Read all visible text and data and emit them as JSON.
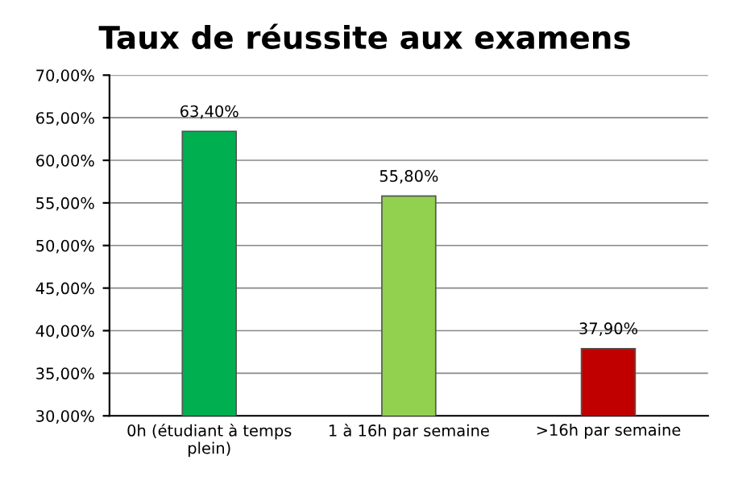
{
  "chart_data": {
    "type": "bar",
    "title": "Taux de réussite aux examens",
    "categories": [
      "0h (étudiant à temps\nplein)",
      "1 à 16h par semaine",
      ">16h par semaine"
    ],
    "values": [
      63.4,
      55.8,
      37.9
    ],
    "colors": [
      "#00b050",
      "#92d050",
      "#c00000"
    ],
    "value_labels": [
      "63,40%",
      "55,80%",
      "37,90%"
    ],
    "ylim": [
      30,
      70
    ],
    "yticks": [
      {
        "value": 30,
        "label": "30,00%"
      },
      {
        "value": 35,
        "label": "35,00%"
      },
      {
        "value": 40,
        "label": "40,00%"
      },
      {
        "value": 45,
        "label": "45,00%"
      },
      {
        "value": 50,
        "label": "50,00%"
      },
      {
        "value": 55,
        "label": "55,00%"
      },
      {
        "value": 60,
        "label": "60,00%"
      },
      {
        "value": 65,
        "label": "65,00%"
      },
      {
        "value": 70,
        "label": "70,00%"
      }
    ],
    "grid": "y"
  }
}
